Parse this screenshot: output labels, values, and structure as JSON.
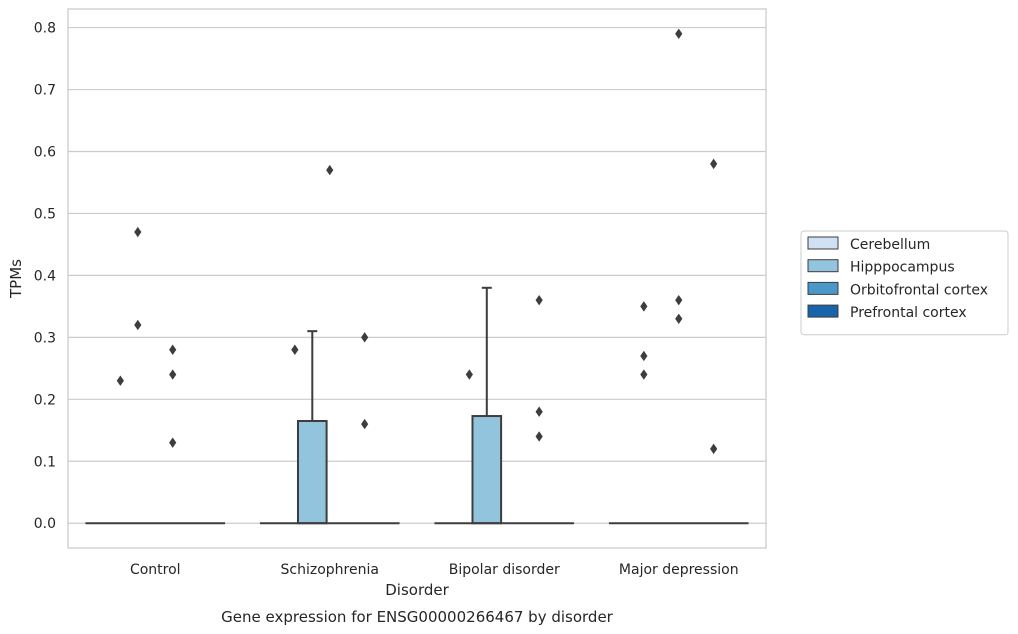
{
  "chart_data": {
    "type": "box",
    "xlabel": "Disorder",
    "ylabel": "TPMs",
    "caption": "Gene expression for ENSG00000266467 by disorder",
    "ylim": [
      -0.04,
      0.83
    ],
    "yticks": [
      "0.0",
      "0.1",
      "0.2",
      "0.3",
      "0.4",
      "0.5",
      "0.6",
      "0.7",
      "0.8"
    ],
    "categories": [
      "Control",
      "Schizophrenia",
      "Bipolar disorder",
      "Major depression"
    ],
    "grid": true,
    "legend_position": "right",
    "series": [
      {
        "name": "Cerebellum",
        "color": "#cfe1f2"
      },
      {
        "name": "Hipppocampus",
        "color": "#93c4de"
      },
      {
        "name": "Orbitofrontal cortex",
        "color": "#4a98c9"
      },
      {
        "name": "Prefrontal cortex",
        "color": "#1764ab"
      }
    ],
    "boxes": [
      {
        "category": "Control",
        "series": "Hipppocampus",
        "q1": 0,
        "median": 0,
        "q3": 0,
        "whisker_low": 0,
        "whisker_high": 0,
        "outliers": [
          {
            "offset": -0.4,
            "y": 0.23
          },
          {
            "offset": -0.2,
            "y": 0.47
          },
          {
            "offset": -0.2,
            "y": 0.32
          },
          {
            "offset": 0.2,
            "y": 0.28
          },
          {
            "offset": 0.2,
            "y": 0.24
          },
          {
            "offset": 0.2,
            "y": 0.13
          }
        ]
      },
      {
        "category": "Schizophrenia",
        "series": "Hipppocampus",
        "q1": 0,
        "median": 0,
        "q3": 0.165,
        "whisker_low": 0,
        "whisker_high": 0.31,
        "outliers": [
          {
            "offset": -0.4,
            "y": 0.28
          },
          {
            "offset": 0,
            "y": 0.57
          },
          {
            "offset": 0.4,
            "y": 0.3
          },
          {
            "offset": 0.4,
            "y": 0.16
          }
        ]
      },
      {
        "category": "Bipolar disorder",
        "series": "Hipppocampus",
        "q1": 0,
        "median": 0,
        "q3": 0.173,
        "whisker_low": 0,
        "whisker_high": 0.38,
        "outliers": [
          {
            "offset": -0.4,
            "y": 0.24
          },
          {
            "offset": 0.4,
            "y": 0.36
          },
          {
            "offset": 0.4,
            "y": 0.18
          },
          {
            "offset": 0.4,
            "y": 0.14
          }
        ]
      },
      {
        "category": "Major depression",
        "series": "Hipppocampus",
        "q1": 0,
        "median": 0,
        "q3": 0,
        "whisker_low": 0,
        "whisker_high": 0,
        "outliers": [
          {
            "offset": -0.4,
            "y": 0.35
          },
          {
            "offset": -0.4,
            "y": 0.27
          },
          {
            "offset": -0.4,
            "y": 0.24
          },
          {
            "offset": 0,
            "y": 0.79
          },
          {
            "offset": 0,
            "y": 0.36
          },
          {
            "offset": 0,
            "y": 0.33
          },
          {
            "offset": 0.4,
            "y": 0.58
          },
          {
            "offset": 0.4,
            "y": 0.12
          }
        ]
      }
    ]
  }
}
